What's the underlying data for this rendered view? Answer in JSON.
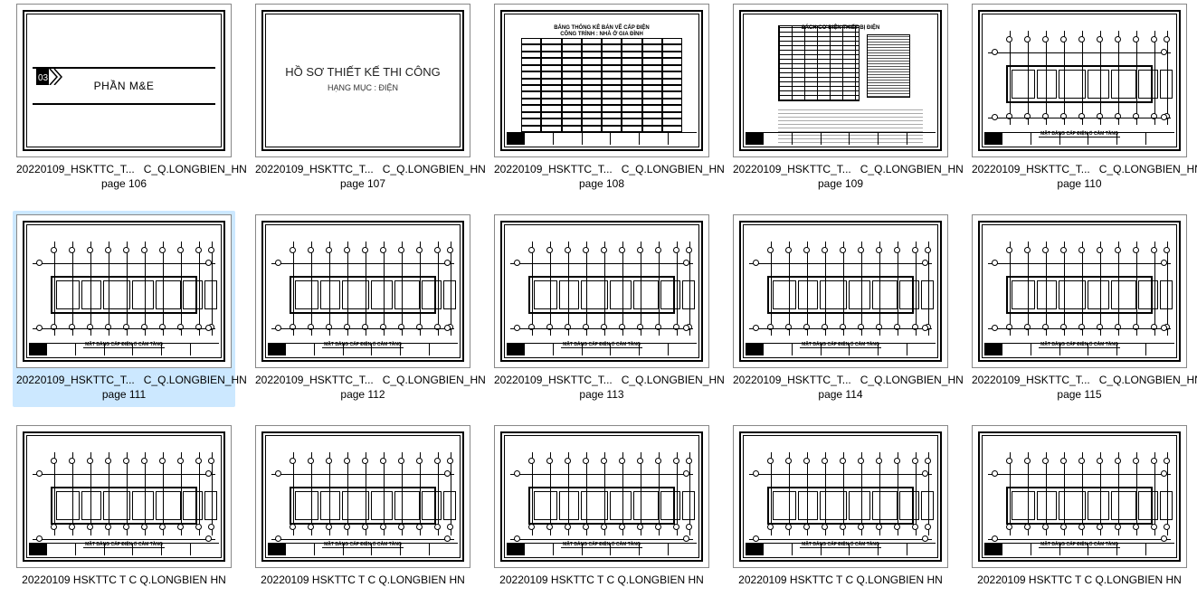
{
  "filename_prefix": "20220109_HSKTTC_T...",
  "filename_suffix": "C_Q.LONGBIEN_HN",
  "selected_index": 5,
  "colors": {
    "background": "#ffffff",
    "selection": "#cce8ff",
    "line": "#000000",
    "text": "#000000"
  },
  "cover_page": {
    "code": "03",
    "label": "PHẦN M&E"
  },
  "title_page": {
    "title": "HỒ SƠ THIẾT KẾ THI CÔNG",
    "subtitle": "HẠNG MỤC : ĐIỆN"
  },
  "table_page": {
    "heading1": "BẢNG THỐNG KÊ BÁN VẼ CẤP ĐIỆN",
    "heading2": "CÔNG TRÌNH : NHÀ Ở GIA ĐÌNH"
  },
  "spec_page": {
    "heading": "SÁCH CƠ ĐIỆN THIẾT BỊ ĐIỆN"
  },
  "plan_caption": "MẶT BẰNG CẤP ĐIỆN Ổ CẮM TẦNG",
  "items": [
    {
      "page": "page 106",
      "type": "cover"
    },
    {
      "page": "page 107",
      "type": "title"
    },
    {
      "page": "page 108",
      "type": "table"
    },
    {
      "page": "page 109",
      "type": "spec"
    },
    {
      "page": "page 110",
      "type": "plan"
    },
    {
      "page": "page 111",
      "type": "plan"
    },
    {
      "page": "page 112",
      "type": "plan"
    },
    {
      "page": "page 113",
      "type": "plan"
    },
    {
      "page": "page 114",
      "type": "plan"
    },
    {
      "page": "page 115",
      "type": "plan"
    },
    {
      "page": "",
      "type": "plan",
      "cut": true
    },
    {
      "page": "",
      "type": "plan",
      "cut": true
    },
    {
      "page": "",
      "type": "plan",
      "cut": true
    },
    {
      "page": "",
      "type": "plan",
      "cut": true
    },
    {
      "page": "",
      "type": "plan",
      "cut": true
    }
  ],
  "cut_caption": "20220109 HSKTTC T     C Q.LONGBIEN HN"
}
